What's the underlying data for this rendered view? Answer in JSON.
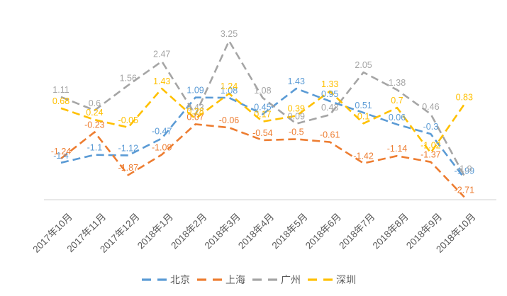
{
  "chart_data": {
    "type": "line",
    "title": "",
    "xlabel": "",
    "ylabel": "",
    "grid": false,
    "line_style": "dashed",
    "legend_position": "bottom",
    "axis_line_color": "#d9d9d9",
    "axis_text_color": "#595959",
    "legend_text_color": "#595959",
    "ylim": [
      -3.2,
      3.7
    ],
    "categories": [
      "2017年10月",
      "2017年11月",
      "2017年12月",
      "2018年1月",
      "2018年2月",
      "2018年3月",
      "2018年4月",
      "2018年5月",
      "2018年6月",
      "2018年7月",
      "2018年8月",
      "2018年9月",
      "2018年10月"
    ],
    "series": [
      {
        "id": "beijing",
        "name": "北京",
        "color": "#5B9BD5",
        "values": [
          -1.4,
          -1.1,
          -1.12,
          -0.47,
          1.09,
          1.08,
          0.45,
          1.43,
          0.95,
          0.51,
          0.06,
          -0.3,
          -1.99
        ]
      },
      {
        "id": "shanghai",
        "name": "上海",
        "color": "#ED7D31",
        "values": [
          -1.24,
          -0.23,
          -1.87,
          -1.09,
          0.07,
          -0.06,
          -0.54,
          -0.5,
          -0.61,
          -1.42,
          -1.14,
          -1.37,
          -2.71
        ]
      },
      {
        "id": "guangzhou",
        "name": "广州",
        "color": "#A5A5A5",
        "values": [
          1.11,
          0.6,
          1.56,
          2.47,
          0.43,
          3.25,
          1.08,
          0.09,
          0.43,
          2.05,
          1.38,
          0.46,
          -1.9
        ]
      },
      {
        "id": "shenzhen",
        "name": "深圳",
        "color": "#FFC000",
        "values": [
          0.68,
          0.24,
          -0.05,
          1.43,
          0.28,
          1.24,
          0.17,
          0.39,
          1.33,
          0.1,
          0.7,
          -1.02,
          0.83
        ]
      }
    ]
  }
}
